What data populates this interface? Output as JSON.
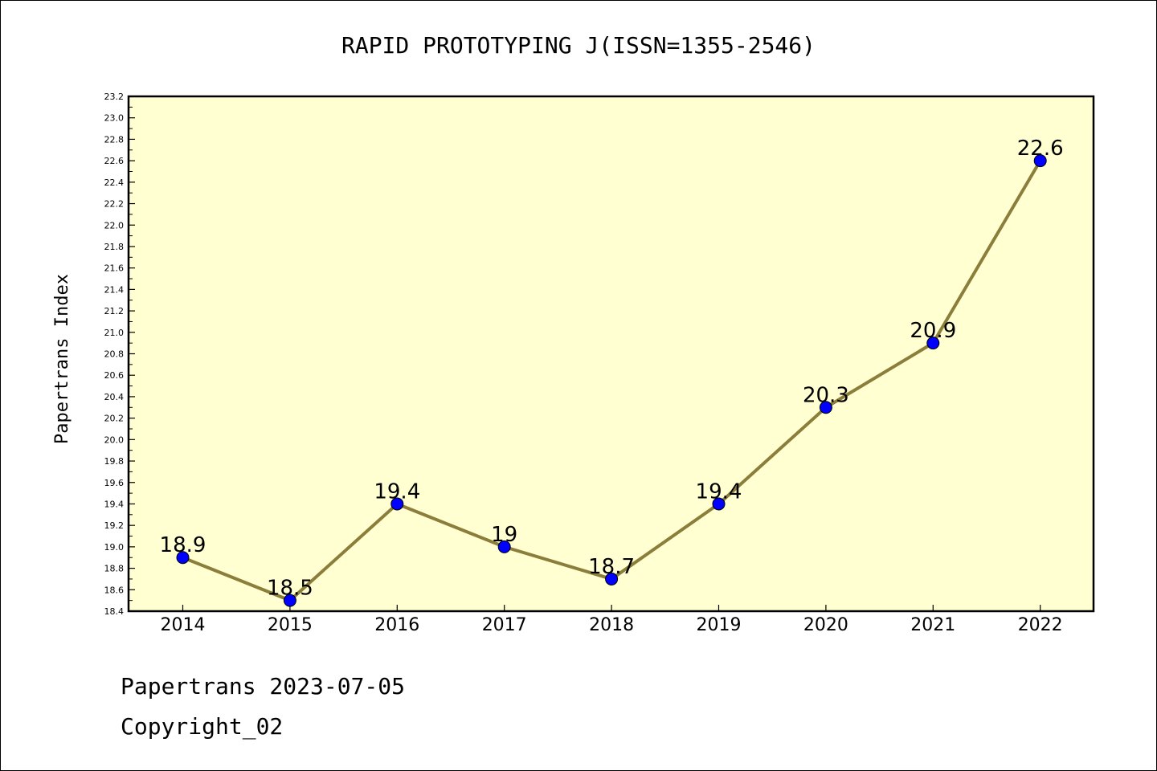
{
  "chart_data": {
    "type": "line",
    "title": "RAPID PROTOTYPING J(ISSN=1355-2546)",
    "xlabel": "",
    "ylabel": "Papertrans Index",
    "categories": [
      "2014",
      "2015",
      "2016",
      "2017",
      "2018",
      "2019",
      "2020",
      "2021",
      "2022"
    ],
    "series": [
      {
        "values": [
          18.9,
          18.5,
          19.4,
          19.0,
          18.7,
          19.4,
          20.3,
          20.9,
          22.6
        ],
        "labels": [
          "18.9",
          "18.5",
          "19.4",
          "19",
          "18.7",
          "19.4",
          "20.3",
          "20.9",
          "22.6"
        ]
      }
    ],
    "ylim": [
      18.4,
      23.2
    ],
    "yticks": [
      "18.4",
      "18.6",
      "18.8",
      "19.0",
      "19.2",
      "19.4",
      "19.6",
      "19.8",
      "20.0",
      "20.2",
      "20.4",
      "20.6",
      "20.8",
      "21.0",
      "21.2",
      "21.4",
      "21.6",
      "21.8",
      "22.0",
      "22.2",
      "22.4",
      "22.6",
      "22.8",
      "23.0",
      "23.2"
    ],
    "grid": false,
    "legend": "none",
    "colors": {
      "plot_background": "#ffffd2",
      "line": "#8b7d3a",
      "marker": "#0000ff"
    }
  },
  "footer": {
    "line1": "Papertrans 2023-07-05",
    "line2": "Copyright_02"
  }
}
